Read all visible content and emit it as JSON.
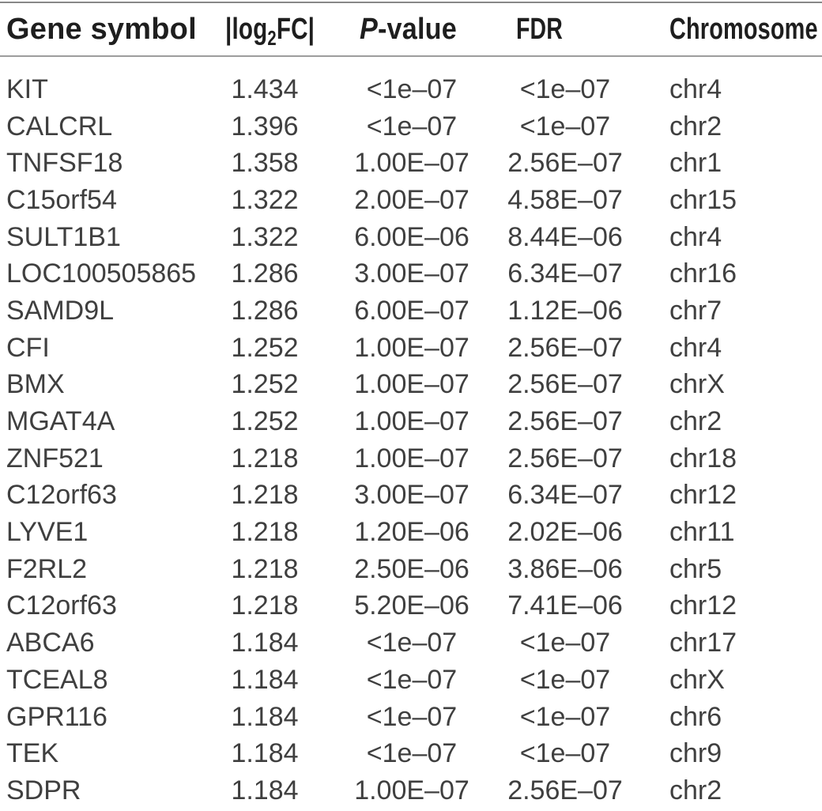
{
  "table": {
    "columns": [
      {
        "key": "gene",
        "label": "Gene symbol"
      },
      {
        "key": "log2fc",
        "label_pre": "|log",
        "label_sub": "2",
        "label_post": "FC|"
      },
      {
        "key": "pvalue",
        "label_italic": "P",
        "label_rest": "-value"
      },
      {
        "key": "fdr",
        "label": "FDR"
      },
      {
        "key": "chromosome",
        "label": "Chromosome"
      }
    ],
    "rows": [
      {
        "gene": "KIT",
        "log2fc": "1.434",
        "pvalue": "<1e–07",
        "fdr": "<1e–07",
        "chromosome": "chr4"
      },
      {
        "gene": "CALCRL",
        "log2fc": "1.396",
        "pvalue": "<1e–07",
        "fdr": "<1e–07",
        "chromosome": "chr2"
      },
      {
        "gene": "TNFSF18",
        "log2fc": "1.358",
        "pvalue": "1.00E–07",
        "fdr": "2.56E–07",
        "chromosome": "chr1"
      },
      {
        "gene": "C15orf54",
        "log2fc": "1.322",
        "pvalue": "2.00E–07",
        "fdr": "4.58E–07",
        "chromosome": "chr15"
      },
      {
        "gene": "SULT1B1",
        "log2fc": "1.322",
        "pvalue": "6.00E–06",
        "fdr": "8.44E–06",
        "chromosome": "chr4"
      },
      {
        "gene": "LOC100505865",
        "log2fc": "1.286",
        "pvalue": "3.00E–07",
        "fdr": "6.34E–07",
        "chromosome": "chr16"
      },
      {
        "gene": "SAMD9L",
        "log2fc": "1.286",
        "pvalue": "6.00E–07",
        "fdr": "1.12E–06",
        "chromosome": "chr7"
      },
      {
        "gene": "CFI",
        "log2fc": "1.252",
        "pvalue": "1.00E–07",
        "fdr": "2.56E–07",
        "chromosome": "chr4"
      },
      {
        "gene": "BMX",
        "log2fc": "1.252",
        "pvalue": "1.00E–07",
        "fdr": "2.56E–07",
        "chromosome": "chrX"
      },
      {
        "gene": "MGAT4A",
        "log2fc": "1.252",
        "pvalue": "1.00E–07",
        "fdr": "2.56E–07",
        "chromosome": "chr2"
      },
      {
        "gene": "ZNF521",
        "log2fc": "1.218",
        "pvalue": "1.00E–07",
        "fdr": "2.56E–07",
        "chromosome": "chr18"
      },
      {
        "gene": "C12orf63",
        "log2fc": "1.218",
        "pvalue": "3.00E–07",
        "fdr": "6.34E–07",
        "chromosome": "chr12"
      },
      {
        "gene": "LYVE1",
        "log2fc": "1.218",
        "pvalue": "1.20E–06",
        "fdr": "2.02E–06",
        "chromosome": "chr11"
      },
      {
        "gene": "F2RL2",
        "log2fc": "1.218",
        "pvalue": "2.50E–06",
        "fdr": "3.86E–06",
        "chromosome": "chr5"
      },
      {
        "gene": "C12orf63",
        "log2fc": "1.218",
        "pvalue": "5.20E–06",
        "fdr": "7.41E–06",
        "chromosome": "chr12"
      },
      {
        "gene": "ABCA6",
        "log2fc": "1.184",
        "pvalue": "<1e–07",
        "fdr": "<1e–07",
        "chromosome": "chr17"
      },
      {
        "gene": "TCEAL8",
        "log2fc": "1.184",
        "pvalue": "<1e–07",
        "fdr": "<1e–07",
        "chromosome": "chrX"
      },
      {
        "gene": "GPR116",
        "log2fc": "1.184",
        "pvalue": "<1e–07",
        "fdr": "<1e–07",
        "chromosome": "chr6"
      },
      {
        "gene": "TEK",
        "log2fc": "1.184",
        "pvalue": "<1e–07",
        "fdr": "<1e–07",
        "chromosome": "chr9"
      },
      {
        "gene": "SDPR",
        "log2fc": "1.184",
        "pvalue": "1.00E–07",
        "fdr": "2.56E–07",
        "chromosome": "chr2"
      }
    ]
  },
  "colors": {
    "background": "#ffffff",
    "header_text": "#1e1e1e",
    "body_text": "#3f3f3f",
    "rule_top": "#878787",
    "rule_mid": "#9d9d9d"
  }
}
